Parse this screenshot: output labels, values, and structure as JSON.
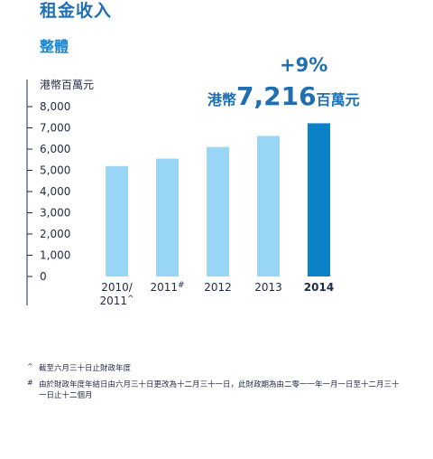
{
  "header": {
    "title": "租金收入",
    "subtitle": "整體"
  },
  "highlight": {
    "change": "+9%",
    "prefix": "港幣",
    "value": "7,216",
    "suffix": "百萬元"
  },
  "chart_data": {
    "type": "bar",
    "unit_label": "港幣百萬元",
    "y_ticks": [
      "0",
      "1,000",
      "2,000",
      "3,000",
      "4,000",
      "5,000",
      "6,000",
      "7,000",
      "8,000"
    ],
    "ylim": [
      0,
      8000
    ],
    "categories": [
      {
        "label": "2010/",
        "label2": "2011",
        "mark": "^"
      },
      {
        "label": "2011",
        "mark": "#"
      },
      {
        "label": "2012"
      },
      {
        "label": "2013"
      },
      {
        "label": "2014"
      }
    ],
    "values": [
      5200,
      5550,
      6100,
      6620,
      7216
    ],
    "highlight_index": 4,
    "colors": {
      "bar": "#99d5f4",
      "highlight": "#0b82c7",
      "axis": "#1f2a44"
    }
  },
  "notes": [
    {
      "mark": "^",
      "text": "截至六月三十日止財政年度"
    },
    {
      "mark": "#",
      "text": "由於財政年度年結日由六月三十日更改為十二月三十一日，此財政期為由二零一一年一月一日至十二月三十一日止十二個月"
    }
  ]
}
